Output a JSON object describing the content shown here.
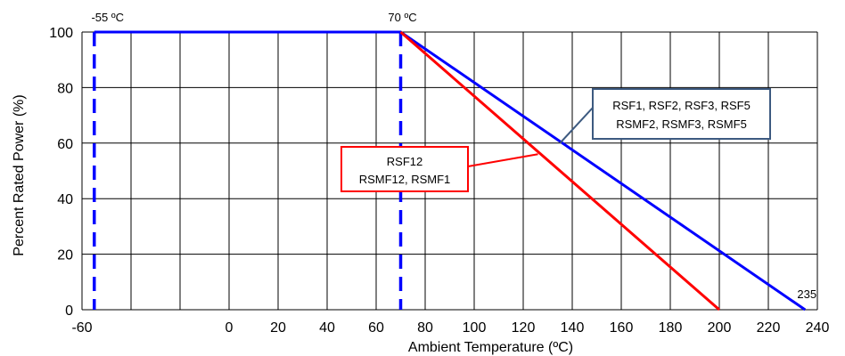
{
  "chart_data": {
    "type": "line",
    "xlabel": "Ambient Temperature (ºC)",
    "ylabel": "Percent Rated Power (%)",
    "xlim": [
      -60,
      240
    ],
    "ylim": [
      0,
      100
    ],
    "x_ticks": [
      -60,
      0,
      20,
      40,
      60,
      80,
      100,
      120,
      140,
      160,
      180,
      200,
      220,
      240
    ],
    "y_ticks": [
      0,
      20,
      40,
      60,
      80,
      100
    ],
    "grid": true,
    "series": [
      {
        "name": "RSF1, RSF2, RSF3, RSF5 / RSMF2, RSMF3, RSMF5",
        "color": "#0000ff",
        "x": [
          -55,
          70,
          235
        ],
        "y": [
          100,
          100,
          0
        ]
      },
      {
        "name": "RSF12 / RSMF12, RSMF1",
        "color": "#ff0000",
        "x": [
          70,
          200
        ],
        "y": [
          100,
          0
        ]
      }
    ],
    "reference_lines": [
      {
        "x": -55,
        "label": "-55 ºC",
        "color": "#0000ff",
        "style": "dashed"
      },
      {
        "x": 70,
        "label": "70 ºC",
        "color": "#0000ff",
        "style": "dashed"
      }
    ],
    "annotations": {
      "endpoint_label": "235",
      "blue_box": {
        "lines": [
          "RSF1, RSF2, RSF3, RSF5",
          "RSMF2, RSMF3, RSMF5"
        ],
        "border_color": "#3d5a80",
        "pointer_to": [
          135,
          60
        ]
      },
      "red_box": {
        "lines": [
          "RSF12",
          "RSMF12, RSMF1"
        ],
        "border_color": "#ff0000",
        "pointer_to": [
          126,
          56
        ]
      }
    }
  }
}
